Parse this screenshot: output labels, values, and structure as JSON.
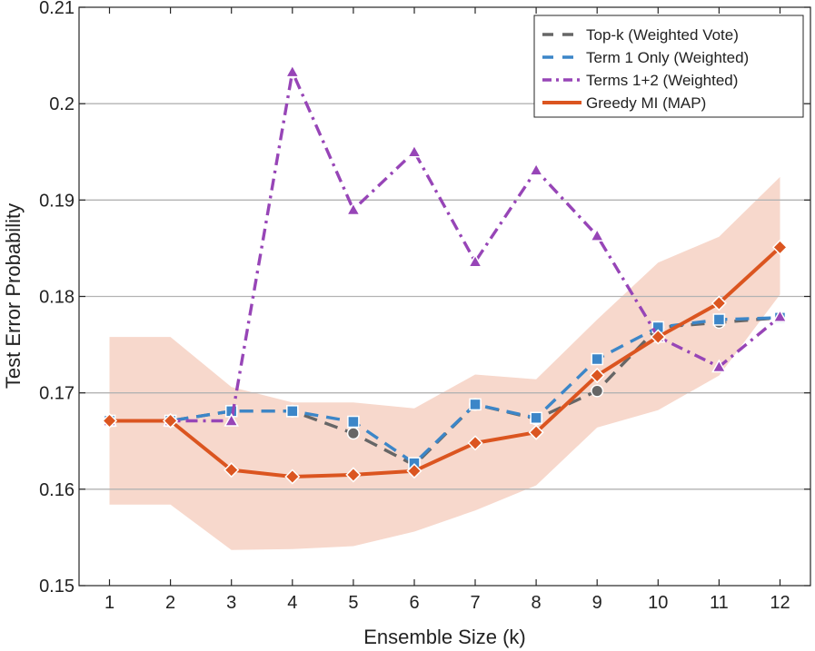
{
  "chart_data": {
    "type": "line",
    "title": "",
    "xlabel": "Ensemble Size (k)",
    "ylabel": "Test Error Probability",
    "x": [
      1,
      2,
      3,
      4,
      5,
      6,
      7,
      8,
      9,
      10,
      11,
      12
    ],
    "xlim": [
      0.5,
      12.5
    ],
    "ylim": [
      0.15,
      0.21
    ],
    "xticks": [
      "1",
      "2",
      "3",
      "4",
      "5",
      "6",
      "7",
      "8",
      "9",
      "10",
      "11",
      "12"
    ],
    "yticks": [
      "0.15",
      "0.16",
      "0.17",
      "0.18",
      "0.19",
      "0.2",
      "0.21"
    ],
    "ytick_values": [
      0.15,
      0.16,
      0.17,
      0.18,
      0.19,
      0.2,
      0.21
    ],
    "grid": "horizontal",
    "legend_position": "top-right",
    "band": {
      "name": "Greedy MI (MAP) range",
      "color": "#f7d8cc",
      "lower": [
        0.1584,
        0.1584,
        0.1537,
        0.1538,
        0.1541,
        0.1556,
        0.1578,
        0.1604,
        0.1664,
        0.1682,
        0.1718,
        0.1802
      ],
      "upper": [
        0.1758,
        0.1758,
        0.1706,
        0.169,
        0.169,
        0.1684,
        0.1719,
        0.1714,
        0.1776,
        0.1835,
        0.1862,
        0.1924
      ]
    },
    "series": [
      {
        "name": "Top-k (Weighted Vote)",
        "color": "#666666",
        "dash": "dash",
        "marker": "circle",
        "values": [
          0.1671,
          0.1671,
          0.1681,
          0.1681,
          0.1658,
          0.1625,
          0.1688,
          0.1673,
          0.1702,
          0.1768,
          0.1773,
          0.1778
        ]
      },
      {
        "name": "Term 1 Only (Weighted)",
        "color": "#3c86c8",
        "dash": "dash",
        "marker": "square",
        "values": [
          0.1671,
          0.1671,
          0.1681,
          0.1681,
          0.167,
          0.1627,
          0.1688,
          0.1674,
          0.1735,
          0.1768,
          0.1776,
          0.1778
        ]
      },
      {
        "name": "Terms 1+2 (Weighted)",
        "color": "#9745b7",
        "dash": "dashdot",
        "marker": "triangle",
        "values": [
          0.1671,
          0.1671,
          0.1671,
          0.2033,
          0.189,
          0.195,
          0.1836,
          0.1931,
          0.1863,
          0.1758,
          0.1727,
          0.1779
        ]
      },
      {
        "name": "Greedy MI (MAP)",
        "color": "#db5520",
        "dash": "solid",
        "marker": "diamond",
        "values": [
          0.1671,
          0.1671,
          0.162,
          0.1613,
          0.1615,
          0.1619,
          0.1648,
          0.1659,
          0.1718,
          0.1758,
          0.1793,
          0.1851
        ]
      }
    ]
  }
}
